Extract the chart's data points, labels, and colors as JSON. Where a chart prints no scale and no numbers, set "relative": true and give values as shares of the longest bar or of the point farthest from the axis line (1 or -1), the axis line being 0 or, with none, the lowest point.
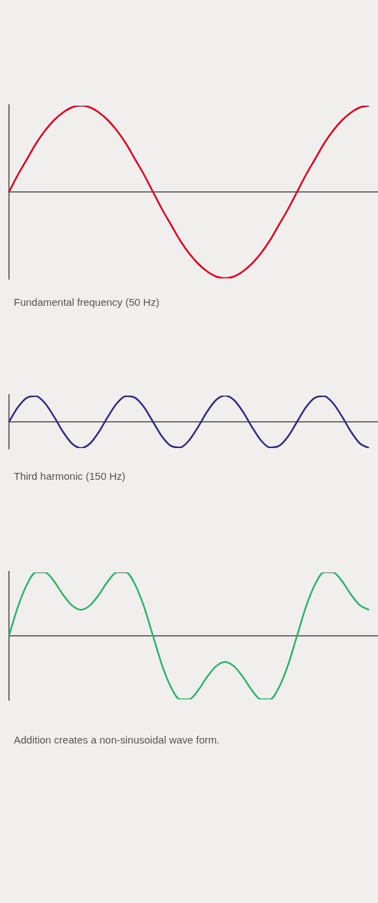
{
  "chart_data": [
    {
      "type": "line",
      "relative": true,
      "marker": "none",
      "categories": [
        null,
        null,
        null,
        null,
        null,
        null,
        null,
        null,
        null,
        null,
        null,
        null,
        null,
        null,
        null,
        null,
        null,
        null,
        null,
        null,
        null,
        null,
        null,
        null,
        null,
        null,
        null,
        null,
        null,
        null,
        null,
        null,
        null,
        null,
        null,
        null,
        null,
        null,
        null,
        null,
        null
      ],
      "series": [
        {
          "color": "#e2001a",
          "values": [
            0,
            0.2,
            0.38,
            0.56,
            0.71,
            0.83,
            0.92,
            0.98,
            1,
            0.98,
            0.92,
            0.83,
            0.71,
            0.56,
            0.38,
            0.2,
            0,
            -0.2,
            -0.38,
            -0.56,
            -0.71,
            -0.83,
            -0.92,
            -0.98,
            -1,
            -0.98,
            -0.92,
            -0.83,
            -0.71,
            -0.56,
            -0.38,
            -0.2,
            0,
            0.2,
            0.38,
            0.56,
            0.71,
            0.83,
            0.92,
            0.98,
            1
          ]
        }
      ],
      "annotations": [
        "Fundamental frequency (50 Hz)"
      ]
    },
    {
      "type": "line",
      "relative": true,
      "marker": "none",
      "categories": [
        null,
        null,
        null,
        null,
        null,
        null,
        null,
        null,
        null,
        null,
        null,
        null,
        null,
        null,
        null,
        null,
        null,
        null,
        null,
        null,
        null,
        null,
        null,
        null,
        null,
        null,
        null,
        null,
        null,
        null,
        null,
        null,
        null,
        null,
        null,
        null,
        null,
        null,
        null,
        null,
        null
      ],
      "series": [
        {
          "color": "#2e2a83",
          "values": [
            0,
            0.56,
            0.92,
            0.98,
            0.71,
            0.2,
            -0.38,
            -0.83,
            -1,
            -0.83,
            -0.38,
            0.2,
            0.71,
            0.98,
            0.92,
            0.56,
            0,
            -0.56,
            -0.92,
            -0.98,
            -0.71,
            -0.2,
            0.38,
            0.83,
            1,
            0.83,
            0.38,
            -0.2,
            -0.71,
            -0.98,
            -0.92,
            -0.56,
            0,
            0.56,
            0.92,
            0.98,
            0.71,
            0.2,
            -0.38,
            -0.83,
            -1
          ]
        }
      ],
      "annotations": [
        "Third harmonic (150 Hz)"
      ]
    },
    {
      "type": "line",
      "relative": true,
      "marker": "none",
      "categories": [
        null,
        null,
        null,
        null,
        null,
        null,
        null,
        null,
        null,
        null,
        null,
        null,
        null,
        null,
        null,
        null,
        null,
        null,
        null,
        null,
        null,
        null,
        null,
        null,
        null,
        null,
        null,
        null,
        null,
        null,
        null,
        null,
        null,
        null,
        null,
        null,
        null,
        null,
        null,
        null,
        null
      ],
      "series": [
        {
          "color": "#2bb36a",
          "values": [
            0,
            0.46,
            0.81,
            1,
            1,
            0.86,
            0.65,
            0.48,
            0.41,
            0.48,
            0.65,
            0.86,
            1,
            1,
            0.81,
            0.46,
            0,
            -0.46,
            -0.81,
            -1,
            -1,
            -0.86,
            -0.65,
            -0.48,
            -0.41,
            -0.48,
            -0.65,
            -0.86,
            -1,
            -1,
            -0.81,
            -0.46,
            0,
            0.46,
            0.81,
            1,
            1,
            0.86,
            0.65,
            0.48,
            0.41
          ]
        }
      ],
      "annotations": [
        "Addition creates a non-sinusoidal wave form."
      ]
    }
  ]
}
